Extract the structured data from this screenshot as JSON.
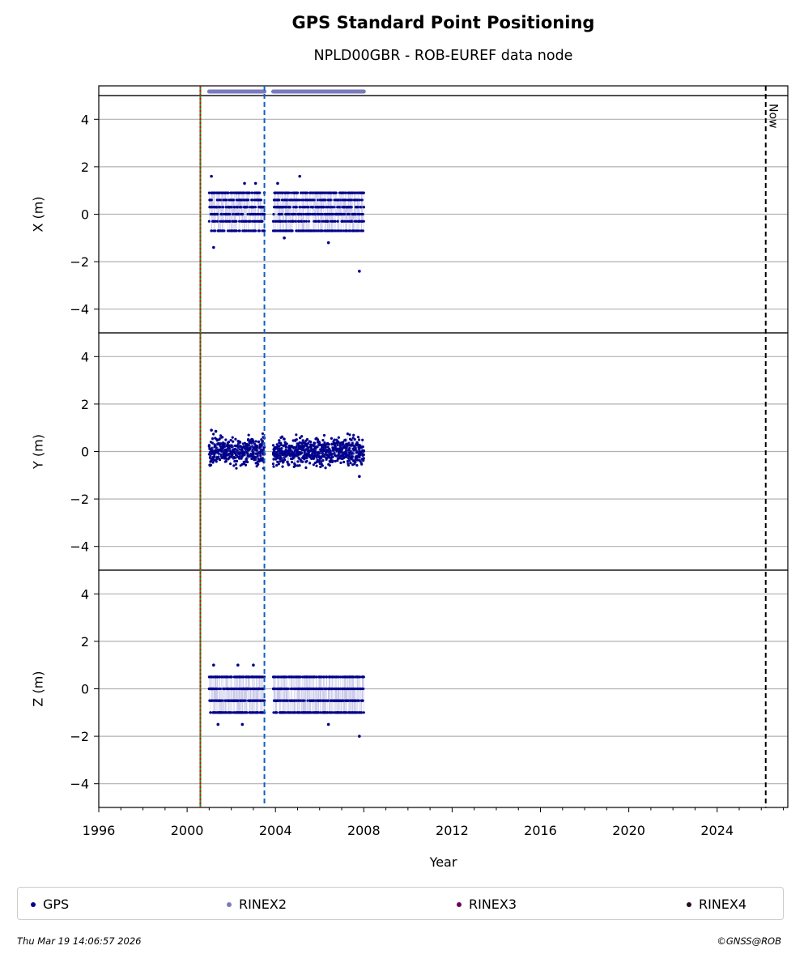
{
  "title": "GPS Standard Point Positioning",
  "subtitle": "NPLD00GBR - ROB-EUREF data node",
  "footer": {
    "timestamp": "Thu Mar 19 14:06:57 2026",
    "copyright": "©GNSS@ROB"
  },
  "legend": [
    {
      "label": "GPS",
      "color": "#00008b"
    },
    {
      "label": "RINEX2",
      "color": "#7b7bbf"
    },
    {
      "label": "RINEX3",
      "color": "#6a0060"
    },
    {
      "label": "RINEX4",
      "color": "#2a0a20"
    }
  ],
  "chart_data": {
    "type": "scatter",
    "xlabel": "Year",
    "xlim": [
      1996,
      2027.2
    ],
    "x_ticks": [
      "1996",
      "2000",
      "2004",
      "2008",
      "2012",
      "2016",
      "2020",
      "2024"
    ],
    "grid": true,
    "panels": [
      {
        "ylabel": "X (m)",
        "ylim": [
          -5,
          5
        ],
        "y_ticks": [
          "4",
          "2",
          "0",
          "−2",
          "−4"
        ],
        "series": {
          "name": "GPS",
          "segments": [
            [
              2001.0,
              2003.5
            ],
            [
              2003.9,
              2008.0
            ]
          ],
          "levels": [
            -0.7,
            -0.3,
            0.0,
            0.3,
            0.6,
            0.9
          ],
          "outliers": [
            [
              2001.1,
              1.6
            ],
            [
              2001.2,
              -1.4
            ],
            [
              2002.6,
              1.3
            ],
            [
              2003.1,
              1.3
            ],
            [
              2004.1,
              1.3
            ],
            [
              2005.1,
              1.6
            ],
            [
              2006.4,
              -1.2
            ],
            [
              2004.4,
              -1.0
            ],
            [
              2007.8,
              -2.4
            ]
          ]
        }
      },
      {
        "ylabel": "Y (m)",
        "ylim": [
          -5,
          5
        ],
        "y_ticks": [
          "4",
          "2",
          "0",
          "−2",
          "−4"
        ],
        "series": {
          "name": "GPS",
          "segments": [
            [
              2001.0,
              2003.5
            ],
            [
              2003.9,
              2008.0
            ]
          ],
          "levels": [
            -0.6,
            -0.4,
            -0.2,
            0.0,
            0.2,
            0.4,
            0.6
          ],
          "outliers": [
            [
              2001.1,
              0.9
            ],
            [
              2001.3,
              0.85
            ],
            [
              2007.8,
              -1.05
            ]
          ]
        }
      },
      {
        "ylabel": "Z (m)",
        "ylim": [
          -5,
          5
        ],
        "y_ticks": [
          "4",
          "2",
          "0",
          "−2",
          "−4"
        ],
        "series": {
          "name": "GPS",
          "segments": [
            [
              2001.0,
              2003.5
            ],
            [
              2003.9,
              2008.0
            ]
          ],
          "levels": [
            -1.0,
            -0.5,
            0.0,
            0.5
          ],
          "outliers": [
            [
              2001.2,
              1.0
            ],
            [
              2002.3,
              1.0
            ],
            [
              2003.0,
              1.0
            ],
            [
              2001.4,
              -1.5
            ],
            [
              2002.5,
              -1.5
            ],
            [
              2006.4,
              -1.5
            ],
            [
              2007.8,
              -2.0
            ]
          ]
        }
      }
    ],
    "vertical_lines": [
      {
        "x": 2000.6,
        "style": "solid",
        "color": "#2a8a2a"
      },
      {
        "x": 2000.6,
        "style": "dotted",
        "color": "#dd0000"
      },
      {
        "x": 2003.5,
        "style": "dashed",
        "color": "#1060c0"
      },
      {
        "x": 2026.2,
        "style": "dashed",
        "color": "#000000",
        "label": "Now"
      }
    ],
    "availability_bar": {
      "name": "RINEX2",
      "segments": [
        [
          2001.0,
          2003.5
        ],
        [
          2003.9,
          2008.0
        ]
      ]
    }
  }
}
